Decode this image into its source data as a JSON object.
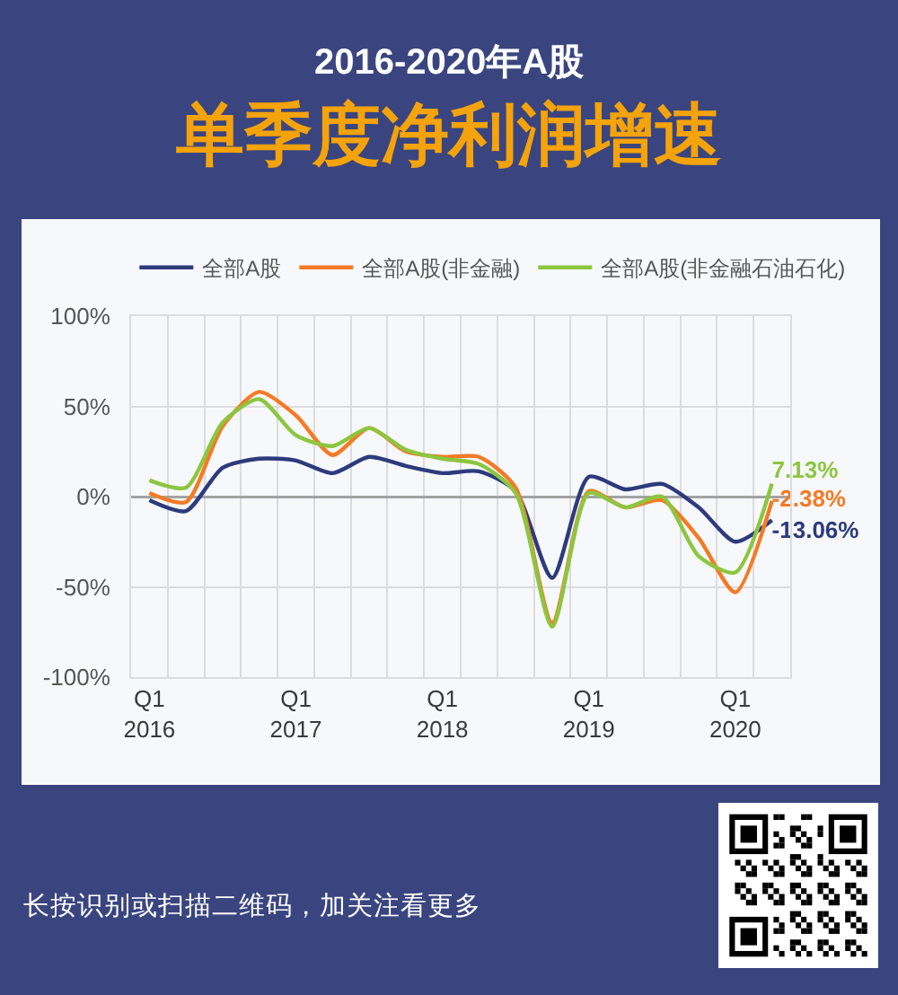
{
  "chart_data": {
    "type": "line",
    "title": "2016-2020年A股",
    "subtitle": "单季度净利润增速",
    "categories": [
      "Q1\n2016",
      null,
      null,
      null,
      "Q1\n2017",
      null,
      null,
      null,
      "Q1\n2018",
      null,
      null,
      null,
      "Q1\n2019",
      null,
      null,
      null,
      "Q1\n2020",
      null
    ],
    "series": [
      {
        "name": "全部A股",
        "color": "#2d3b7c",
        "values": [
          -2,
          -8,
          16,
          21,
          20,
          13,
          22,
          17,
          13,
          14,
          3,
          -45,
          11,
          4,
          7,
          -6,
          -25,
          -13.06
        ],
        "value_labels": [
          null,
          null,
          null,
          null,
          null,
          null,
          null,
          null,
          null,
          null,
          null,
          null,
          null,
          null,
          null,
          null,
          null,
          "-13.06%"
        ]
      },
      {
        "name": "全部A股(非金融)",
        "color": "#f47a25",
        "values": [
          2,
          -3,
          39,
          58,
          45,
          23,
          38,
          25,
          22,
          22,
          5,
          -70,
          3,
          -6,
          -2,
          -23,
          -53,
          -2.38
        ],
        "value_labels": [
          null,
          null,
          null,
          null,
          null,
          null,
          null,
          null,
          null,
          null,
          null,
          null,
          null,
          null,
          null,
          null,
          null,
          "-2.38%"
        ]
      },
      {
        "name": "全部A股(非金融石油石化)",
        "color": "#8cc63f",
        "values": [
          9,
          5,
          41,
          54,
          34,
          28,
          38,
          26,
          21,
          18,
          2,
          -72,
          2,
          -6,
          0,
          -33,
          -42,
          7.13
        ],
        "value_labels": [
          null,
          null,
          null,
          null,
          null,
          null,
          null,
          null,
          null,
          null,
          null,
          null,
          null,
          null,
          null,
          null,
          null,
          "7.13%"
        ]
      }
    ],
    "ylim": [
      -100,
      100
    ],
    "yticks": [
      {
        "value": -100,
        "label": "-100%"
      },
      {
        "value": -50,
        "label": "-50%"
      },
      {
        "value": 0,
        "label": "0%"
      },
      {
        "value": 50,
        "label": "50%"
      },
      {
        "value": 100,
        "label": "100%"
      }
    ],
    "grid": true,
    "legend": "top",
    "annotations": [
      "长按识别或扫描二维码，加关注看更多"
    ]
  }
}
